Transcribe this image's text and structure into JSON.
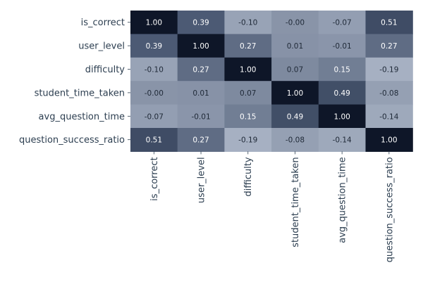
{
  "chart_data": {
    "type": "heatmap",
    "rows": [
      "is_correct",
      "user_level",
      "difficulty",
      "student_time_taken",
      "avg_question_time",
      "question_success_ratio"
    ],
    "columns": [
      "is_correct",
      "user_level",
      "difficulty",
      "student_time_taken",
      "avg_question_time",
      "question_success_ratio"
    ],
    "values": [
      [
        1.0,
        0.39,
        -0.1,
        -0.0,
        -0.07,
        0.51
      ],
      [
        0.39,
        1.0,
        0.27,
        0.01,
        -0.01,
        0.27
      ],
      [
        -0.1,
        0.27,
        1.0,
        0.07,
        0.15,
        -0.19
      ],
      [
        -0.0,
        0.01,
        0.07,
        1.0,
        0.49,
        -0.08
      ],
      [
        -0.07,
        -0.01,
        0.15,
        0.49,
        1.0,
        -0.14
      ],
      [
        0.51,
        0.27,
        -0.19,
        -0.08,
        -0.14,
        1.0
      ]
    ],
    "value_labels": [
      [
        "1.00",
        "0.39",
        "-0.10",
        "-0.00",
        "-0.07",
        "0.51"
      ],
      [
        "0.39",
        "1.00",
        "0.27",
        "0.01",
        "-0.01",
        "0.27"
      ],
      [
        "-0.10",
        "0.27",
        "1.00",
        "0.07",
        "0.15",
        "-0.19"
      ],
      [
        "-0.00",
        "0.01",
        "0.07",
        "1.00",
        "0.49",
        "-0.08"
      ],
      [
        "-0.07",
        "-0.01",
        "0.15",
        "0.49",
        "1.00",
        "-0.14"
      ],
      [
        "0.51",
        "0.27",
        "-0.19",
        "-0.08",
        "-0.14",
        "1.00"
      ]
    ],
    "colormap": {
      "domain": [
        -0.19,
        1.0
      ],
      "low_color": "#a6b0c2",
      "mid_color": "#4a5872",
      "high_color": "#0e1628"
    },
    "text_colors": {
      "dark": "#1f2937",
      "light": "#ffffff"
    },
    "tick_label_color": "#2c3e50",
    "title": "",
    "xlabel": "",
    "ylabel": "",
    "grid": false,
    "colorbar": false
  }
}
